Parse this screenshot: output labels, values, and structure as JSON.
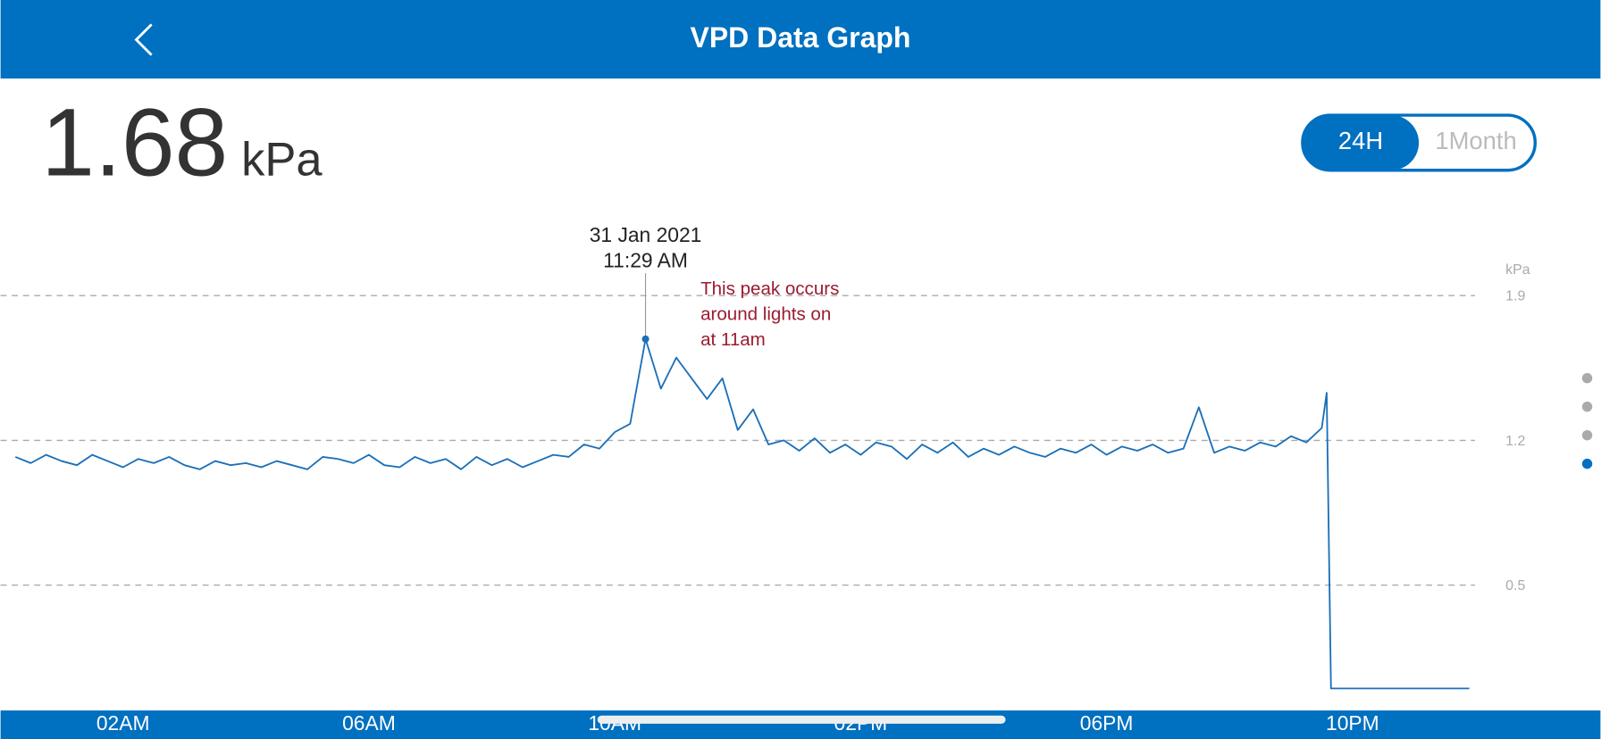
{
  "header": {
    "title": "VPD Data Graph"
  },
  "current": {
    "value": 1.68,
    "unit": "kPa"
  },
  "range_toggle": {
    "options": [
      "24H",
      "1Month"
    ]
  },
  "chart_data": {
    "type": "line",
    "y_unit": "kPa",
    "color": "#1a6fb8",
    "grid": true,
    "xlim": [
      0,
      24
    ],
    "xticks": [
      {
        "value": 2,
        "label": "02AM"
      },
      {
        "value": 6,
        "label": "06AM"
      },
      {
        "value": 10,
        "label": "10AM"
      },
      {
        "value": 14,
        "label": "02PM"
      },
      {
        "value": 18,
        "label": "06PM"
      },
      {
        "value": 22,
        "label": "10PM"
      }
    ],
    "ylim": [
      -0.1,
      2.3
    ],
    "yticks": [
      0.5,
      1.2,
      1.9
    ],
    "x": [
      0.25,
      0.5,
      0.75,
      1.0,
      1.25,
      1.5,
      1.75,
      2.0,
      2.25,
      2.5,
      2.75,
      3.0,
      3.25,
      3.5,
      3.75,
      4.0,
      4.25,
      4.5,
      4.75,
      5.0,
      5.25,
      5.5,
      5.75,
      6.0,
      6.25,
      6.5,
      6.75,
      7.0,
      7.25,
      7.5,
      7.75,
      8.0,
      8.25,
      8.5,
      8.75,
      9.0,
      9.25,
      9.5,
      9.75,
      10.0,
      10.25,
      10.5,
      10.75,
      11.0,
      11.25,
      11.5,
      11.75,
      12.0,
      12.25,
      12.5,
      12.75,
      13.0,
      13.25,
      13.5,
      13.75,
      14.0,
      14.25,
      14.5,
      14.75,
      15.0,
      15.25,
      15.5,
      15.75,
      16.0,
      16.25,
      16.5,
      16.75,
      17.0,
      17.25,
      17.5,
      17.75,
      18.0,
      18.25,
      18.5,
      18.75,
      19.0,
      19.25,
      19.5,
      19.75,
      20.0,
      20.25,
      20.5,
      20.75,
      21.0,
      21.25,
      21.5,
      21.58,
      21.65,
      23.9
    ],
    "values": [
      1.12,
      1.09,
      1.13,
      1.1,
      1.08,
      1.13,
      1.1,
      1.07,
      1.11,
      1.09,
      1.12,
      1.08,
      1.06,
      1.1,
      1.08,
      1.09,
      1.07,
      1.1,
      1.08,
      1.06,
      1.12,
      1.11,
      1.09,
      1.13,
      1.08,
      1.07,
      1.12,
      1.09,
      1.11,
      1.06,
      1.12,
      1.08,
      1.11,
      1.07,
      1.1,
      1.13,
      1.12,
      1.18,
      1.16,
      1.24,
      1.28,
      1.69,
      1.45,
      1.6,
      1.5,
      1.4,
      1.5,
      1.25,
      1.35,
      1.18,
      1.2,
      1.15,
      1.21,
      1.14,
      1.18,
      1.13,
      1.19,
      1.17,
      1.11,
      1.18,
      1.14,
      1.19,
      1.12,
      1.16,
      1.13,
      1.17,
      1.14,
      1.12,
      1.16,
      1.14,
      1.18,
      1.13,
      1.17,
      1.15,
      1.18,
      1.14,
      1.16,
      1.36,
      1.14,
      1.17,
      1.15,
      1.19,
      1.17,
      1.22,
      1.19,
      1.26,
      1.43,
      0,
      0
    ],
    "tooltip": {
      "date": "31 Jan 2021",
      "time": "11:29 AM"
    },
    "note": [
      "This peak occurs",
      "around lights on",
      "at 11am"
    ]
  }
}
